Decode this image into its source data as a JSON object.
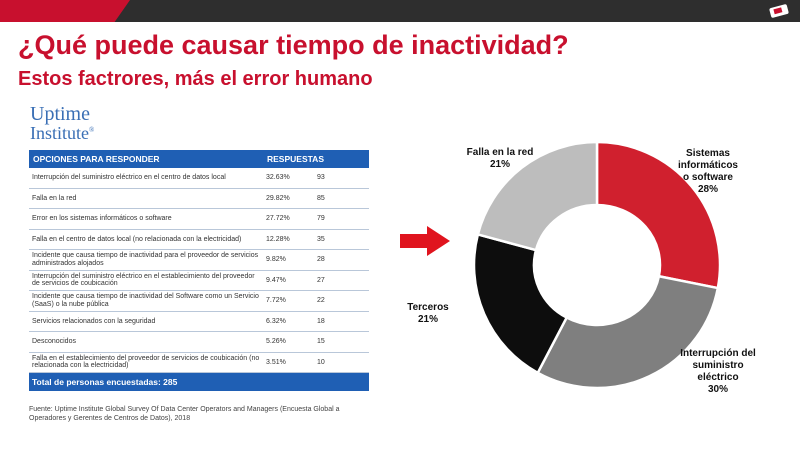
{
  "header": {
    "title": "¿Qué puede causar tiempo de inactividad?",
    "subtitle": "Estos factrores, más el error humano"
  },
  "logo": {
    "line1": "Uptime",
    "line2": "Institute",
    "mark": "®"
  },
  "table": {
    "headers": [
      "OPCIONES PARA RESPONDER",
      "RESPUESTAS"
    ],
    "rows": [
      {
        "option": "Interrupción del suministro eléctrico en el centro de datos local",
        "percent": "32.63%",
        "count": "93"
      },
      {
        "option": "Falla en la red",
        "percent": "29.82%",
        "count": "85"
      },
      {
        "option": "Error en los sistemas informáticos o software",
        "percent": "27.72%",
        "count": "79"
      },
      {
        "option": "Falla en el centro de datos local (no relacionada con la electricidad)",
        "percent": "12.28%",
        "count": "35"
      },
      {
        "option": "Incidente que causa tiempo de inactividad para el proveedor de servicios administrados alojados",
        "percent": "9.82%",
        "count": "28"
      },
      {
        "option": "Interrupción del suministro eléctrico en el establecimiento del proveedor de servicios de coubicación",
        "percent": "9.47%",
        "count": "27"
      },
      {
        "option": "Incidente que causa tiempo de inactividad del Software como un Servicio (SaaS) o la nube pública",
        "percent": "7.72%",
        "count": "22"
      },
      {
        "option": "Servicios relacionados con la seguridad",
        "percent": "6.32%",
        "count": "18"
      },
      {
        "option": "Desconocidos",
        "percent": "5.26%",
        "count": "15"
      },
      {
        "option": "Falla en el establecimiento del proveedor de servicios de coubicación (no relacionada con la electricidad)",
        "percent": "3.51%",
        "count": "10"
      }
    ],
    "total": "Total de personas encuestadas: 285"
  },
  "source": "Fuente: Uptime Institute Global Survey Of Data Center Operators and Managers (Encuesta Global a Operadores y Gerentes de Centros de Datos), 2018",
  "chart_data": {
    "type": "pie",
    "style": "donut",
    "series": [
      {
        "label_lines": [
          "Sistemas informáticos",
          "o software"
        ],
        "value_label": "28%",
        "value": 28,
        "color": "#d0202e"
      },
      {
        "label_lines": [
          "Interrupción del",
          "suministro eléctrico"
        ],
        "value_label": "30%",
        "value": 30,
        "color": "#7f7f7f"
      },
      {
        "label_lines": [
          "Terceros"
        ],
        "value_label": "21%",
        "value": 21,
        "color": "#0d0d0d"
      },
      {
        "label_lines": [
          "Falla en la red"
        ],
        "value_label": "21%",
        "value": 21,
        "color": "#bdbdbd"
      }
    ]
  },
  "colors": {
    "brand_red": "#c8102e",
    "table_blue": "#1f5fb4",
    "logo_blue": "#3a6fb5",
    "arrow_red": "#e0141e"
  }
}
